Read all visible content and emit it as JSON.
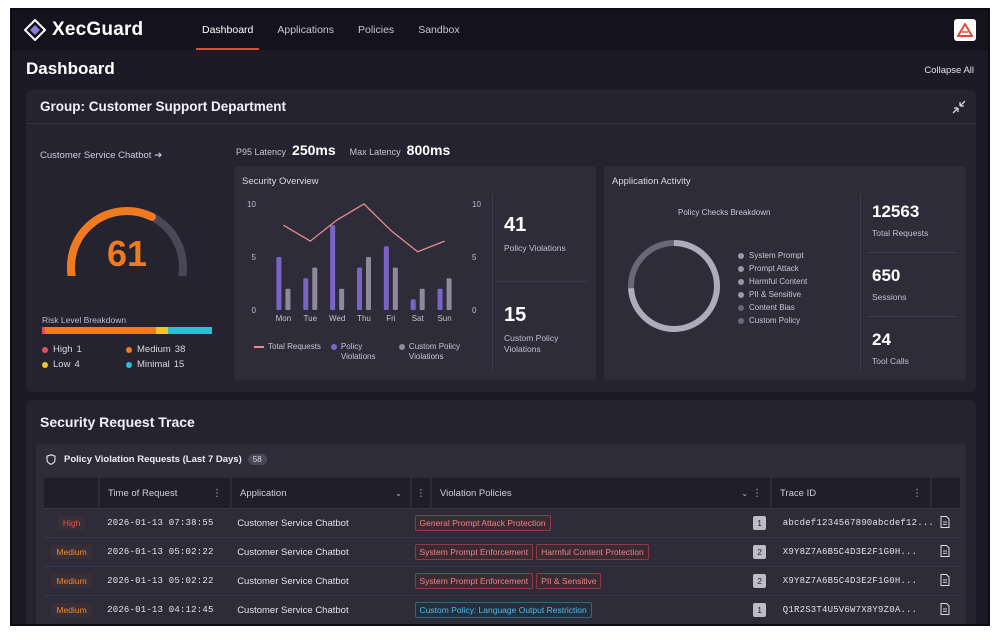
{
  "app": {
    "name": "XecGuard"
  },
  "nav": {
    "tabs": [
      {
        "label": "Dashboard",
        "active": true
      },
      {
        "label": "Applications",
        "active": false
      },
      {
        "label": "Policies",
        "active": false
      },
      {
        "label": "Sandbox",
        "active": false
      }
    ]
  },
  "page": {
    "title": "Dashboard",
    "collapse_label": "Collapse All"
  },
  "group": {
    "title": "Group: Customer Support Department",
    "app_link": "Customer Service Chatbot",
    "risk_score": "61",
    "risk_score_fraction": 0.61,
    "latency": {
      "p95_label": "P95 Latency",
      "p95_value": "250ms",
      "max_label": "Max Latency",
      "max_value": "800ms"
    },
    "risk_breakdown": {
      "title": "Risk Level Breakdown",
      "items": [
        {
          "label": "High",
          "count": "1",
          "color": "#e0505a"
        },
        {
          "label": "Medium",
          "count": "38",
          "color": "#f07a1f"
        },
        {
          "label": "Low",
          "count": "4",
          "color": "#f2c230"
        },
        {
          "label": "Minimal",
          "count": "15",
          "color": "#2bbfd6"
        }
      ]
    }
  },
  "security_overview": {
    "title": "Security Overview",
    "stats": [
      {
        "value": "41",
        "label": "Policy Violations"
      },
      {
        "value": "15",
        "label": "Custom Policy Violations"
      }
    ],
    "legend": [
      {
        "label": "Total Requests",
        "color": "#e58b95"
      },
      {
        "label": "Policy Violations",
        "color": "#7a64c8"
      },
      {
        "label": "Custom Policy Violations",
        "color": "#8e8a9c"
      }
    ]
  },
  "chart_data": {
    "type": "bar",
    "categories": [
      "Mon",
      "Tue",
      "Wed",
      "Thu",
      "Fri",
      "Sat",
      "Sun"
    ],
    "series": [
      {
        "name": "Policy Violations",
        "type": "bar",
        "values": [
          5,
          3,
          8,
          4,
          6,
          1,
          2
        ],
        "color": "#7a64c8"
      },
      {
        "name": "Custom Policy Violations",
        "type": "bar",
        "values": [
          2,
          4,
          2,
          5,
          4,
          2,
          3
        ],
        "color": "#8e8a9c"
      },
      {
        "name": "Total Requests",
        "type": "line",
        "values": [
          8,
          6.5,
          8.5,
          10,
          7.5,
          5.5,
          6.5
        ],
        "color": "#e58b95"
      }
    ],
    "ylim": [
      0,
      10
    ],
    "y_ticks_left": [
      0,
      5,
      10
    ],
    "y_ticks_right": [
      0,
      5,
      10
    ],
    "grid": false,
    "legend": "bottom"
  },
  "activity": {
    "title": "Application Activity",
    "donut_title": "Policy Checks Breakdown",
    "donut_legend": [
      {
        "label": "System Prompt",
        "color": "#9a97a8"
      },
      {
        "label": "Prompt Attack",
        "color": "#9a97a8"
      },
      {
        "label": "Harmful Content",
        "color": "#9a97a8"
      },
      {
        "label": "PII & Sensitive",
        "color": "#9a97a8"
      },
      {
        "label": "Content Bias",
        "color": "#6a6778"
      },
      {
        "label": "Custom Policy",
        "color": "#6a6778"
      }
    ],
    "stats": [
      {
        "value": "12563",
        "label": "Total Requests"
      },
      {
        "value": "650",
        "label": "Sessions"
      },
      {
        "value": "24",
        "label": "Tool Calls"
      }
    ]
  },
  "trace": {
    "title": "Security Request Trace",
    "section_title": "Policy Violation Requests (Last 7 Days)",
    "count": "58",
    "columns": {
      "time": "Time of Request",
      "application": "Application",
      "policies": "Violation Policies",
      "trace": "Trace ID"
    },
    "rows": [
      {
        "risk": "High",
        "risk_level": "high",
        "time": "2026-01-13 07:38:55",
        "application": "Customer Service Chatbot",
        "policies": [
          {
            "label": "General Prompt Attack Protection",
            "kind": "red"
          }
        ],
        "count": "1",
        "trace_id": "abcdef1234567890abcdef12..."
      },
      {
        "risk": "Medium",
        "risk_level": "med",
        "time": "2026-01-13 05:02:22",
        "application": "Customer Service Chatbot",
        "policies": [
          {
            "label": "System Prompt Enforcement",
            "kind": "red"
          },
          {
            "label": "Harmful Content Protection",
            "kind": "red"
          }
        ],
        "count": "2",
        "trace_id": "X9Y8Z7A6B5C4D3E2F1G0H..."
      },
      {
        "risk": "Medium",
        "risk_level": "med",
        "time": "2026-01-13 05:02:22",
        "application": "Customer Service Chatbot",
        "policies": [
          {
            "label": "System Prompt Enforcement",
            "kind": "red"
          },
          {
            "label": "PII & Sensitive",
            "kind": "red"
          }
        ],
        "count": "2",
        "trace_id": "X9Y8Z7A6B5C4D3E2F1G0H..."
      },
      {
        "risk": "Medium",
        "risk_level": "med",
        "time": "2026-01-13 04:12:45",
        "application": "Customer Service Chatbot",
        "policies": [
          {
            "label": "Custom Policy: Language Output Restriction",
            "kind": "blue"
          }
        ],
        "count": "1",
        "trace_id": "Q1R2S3T4U5V6W7X8Y9Z0A..."
      }
    ]
  }
}
